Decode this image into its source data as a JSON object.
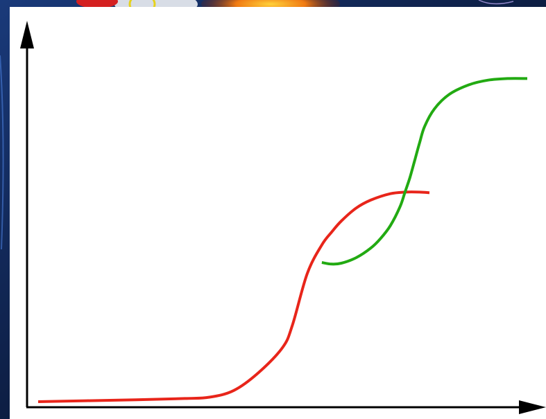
{
  "chart_data": {
    "type": "line",
    "title": "",
    "xlabel": "",
    "ylabel": "",
    "grid": false,
    "legend": "none",
    "xlim": [
      0,
      100
    ],
    "ylim": [
      0,
      100
    ],
    "series": [
      {
        "color": "#e8251a",
        "x": [
          0,
          10,
          20,
          30,
          35,
          40,
          45,
          50,
          52,
          55,
          58,
          60,
          62,
          65,
          68,
          72,
          75,
          78,
          80
        ],
        "y": [
          0,
          0.3,
          0.6,
          1.0,
          1.4,
          3.5,
          9.0,
          17.0,
          24.0,
          40.0,
          49.0,
          53.0,
          56.5,
          60.5,
          63.0,
          65.0,
          65.5,
          65.5,
          65.3
        ]
      },
      {
        "color": "#22aa12",
        "x": [
          58,
          60,
          62,
          65,
          68,
          70,
          72,
          74,
          75,
          76,
          77,
          78,
          79,
          81,
          84,
          88,
          92,
          96,
          100
        ],
        "y": [
          43.5,
          43.0,
          43.3,
          45.0,
          48.0,
          51.0,
          55.0,
          61.0,
          65.5,
          70.0,
          75.5,
          81.0,
          86.0,
          91.5,
          96.0,
          99.0,
          100.5,
          101.0,
          101.0
        ]
      }
    ]
  }
}
